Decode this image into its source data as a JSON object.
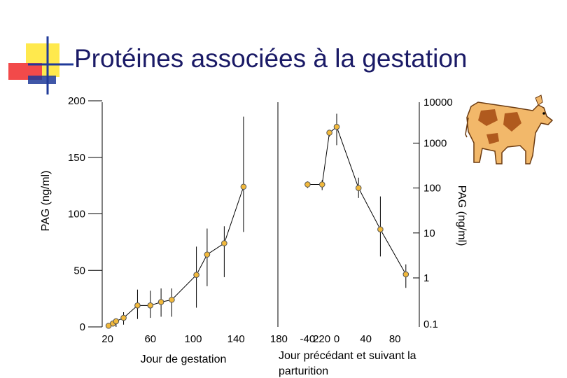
{
  "slide": {
    "title": "Protéines associées à la gestation",
    "colors": {
      "title": "#1a1a66",
      "marker_fill": "#f2b93b",
      "marker_stroke": "#555555",
      "deco_yellow": "#ffe94d",
      "deco_red": "#f24a4a",
      "deco_blue": "#1f3a99",
      "cow_body": "#f2b86a",
      "cow_spots": "#b05a1e"
    },
    "icons": [
      "cow-illustration",
      "slide-decoration-squares"
    ]
  },
  "chart_data": [
    {
      "type": "line",
      "title": "",
      "xlabel": "Jour de gestation",
      "ylabel": "PAG (ng/ml)",
      "xlim": [
        0,
        240
      ],
      "ylim": [
        0,
        200
      ],
      "x_ticks": [
        "20",
        "60",
        "100",
        "140",
        "180",
        "220"
      ],
      "x_tick_values": [
        20,
        60,
        100,
        140,
        180,
        220
      ],
      "y_ticks": [
        "0",
        "50",
        "100",
        "150",
        "200"
      ],
      "y_tick_values": [
        0,
        50,
        100,
        150,
        200
      ],
      "grid": false,
      "series": [
        {
          "x": [
            21,
            25,
            28,
            35,
            48,
            60,
            70,
            80,
            103,
            113,
            129,
            147
          ],
          "y": [
            1,
            3,
            5,
            8,
            19,
            19,
            22,
            24,
            46,
            64,
            74,
            124
          ],
          "err_low": [
            0,
            0,
            0,
            2,
            7,
            8,
            9,
            9,
            17,
            36,
            44,
            84
          ],
          "err_high": [
            1,
            0,
            3,
            13,
            33,
            32,
            34,
            34,
            71,
            87,
            89,
            186
          ]
        }
      ]
    },
    {
      "type": "line",
      "title": "",
      "xlabel": "Jour précédant et suivant la parturition",
      "ylabel": "PAG (ng/ml)",
      "y_scale": "log",
      "xlim": [
        -60,
        100
      ],
      "ylim": [
        0.1,
        10000
      ],
      "x_ticks": [
        "-40",
        "0",
        "40",
        "80"
      ],
      "x_tick_values": [
        -40,
        0,
        40,
        80
      ],
      "y_ticks": [
        "0.1",
        "1",
        "10",
        "100",
        "1000",
        "10000"
      ],
      "y_tick_values": [
        0.1,
        1,
        10,
        100,
        1000,
        10000
      ],
      "grid": false,
      "series": [
        {
          "x": [
            -40,
            -20,
            -10,
            0,
            30,
            60,
            95
          ],
          "y": [
            120,
            120,
            1700,
            2300,
            100,
            12,
            1.2
          ],
          "err_low": [
            100,
            90,
            1400,
            900,
            60,
            3,
            0.6
          ],
          "err_high": [
            140,
            150,
            1900,
            4500,
            170,
            65,
            2
          ]
        }
      ]
    }
  ]
}
